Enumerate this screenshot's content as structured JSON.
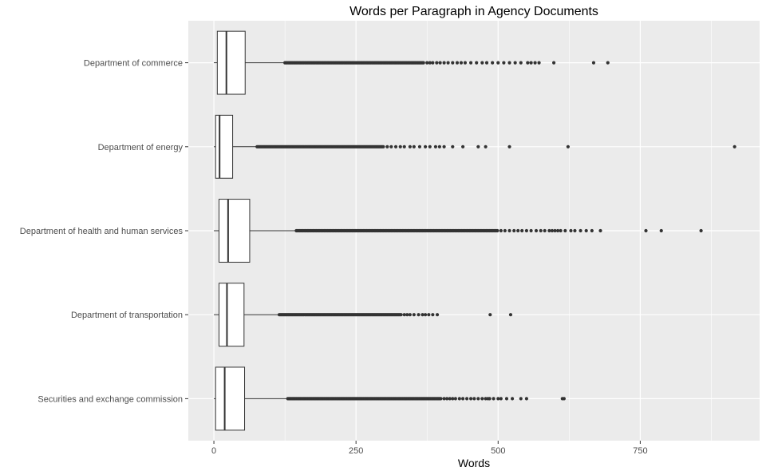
{
  "chart_data": {
    "type": "boxplot",
    "title": "Words per Paragraph in Agency Documents",
    "xlabel": "Words",
    "ylabel": "",
    "xlim": [
      -45,
      960
    ],
    "xticks": [
      0,
      250,
      500,
      750
    ],
    "grid": true,
    "legend": "none",
    "colors": {
      "panel": "#ebebeb",
      "grid": "#ffffff",
      "box_fill": "#ffffff",
      "line": "#333333",
      "point": "#333333"
    },
    "series": [
      {
        "category": "Securities and exchange commission",
        "min": 0,
        "q1": 3,
        "median": 19,
        "q3": 54,
        "whisker_high": 130,
        "dense_outlier_range": [
          130,
          400
        ],
        "outliers": [
          405,
          410,
          415,
          420,
          425,
          432,
          438,
          445,
          452,
          458,
          465,
          472,
          478,
          482,
          485,
          492,
          500,
          505,
          515,
          525,
          540,
          550,
          613,
          616
        ]
      },
      {
        "category": "Department of transportation",
        "min": 0,
        "q1": 9,
        "median": 23,
        "q3": 53,
        "whisker_high": 115,
        "dense_outlier_range": [
          115,
          330
        ],
        "outliers": [
          335,
          340,
          345,
          352,
          360,
          367,
          372,
          378,
          385,
          393,
          486,
          522
        ]
      },
      {
        "category": "Department of health and human services",
        "min": 0,
        "q1": 9,
        "median": 25,
        "q3": 63,
        "whisker_high": 145,
        "dense_outlier_range": [
          145,
          500
        ],
        "outliers": [
          505,
          512,
          520,
          528,
          535,
          542,
          550,
          558,
          567,
          575,
          582,
          590,
          595,
          600,
          605,
          610,
          618,
          628,
          635,
          645,
          655,
          665,
          680,
          760,
          787,
          857
        ]
      },
      {
        "category": "Department of energy",
        "min": 0,
        "q1": 3,
        "median": 10,
        "q3": 33,
        "whisker_high": 76,
        "dense_outlier_range": [
          76,
          300
        ],
        "outliers": [
          305,
          312,
          320,
          328,
          335,
          345,
          352,
          362,
          372,
          380,
          390,
          397,
          405,
          420,
          438,
          465,
          478,
          520,
          623,
          916
        ]
      },
      {
        "category": "Department of commerce",
        "min": 0,
        "q1": 6,
        "median": 22,
        "q3": 55,
        "whisker_high": 125,
        "dense_outlier_range": [
          125,
          370
        ],
        "outliers": [
          375,
          380,
          385,
          392,
          398,
          405,
          412,
          420,
          428,
          435,
          442,
          452,
          462,
          472,
          480,
          490,
          500,
          510,
          520,
          530,
          540,
          552,
          558,
          565,
          572,
          598,
          668,
          693
        ]
      }
    ]
  }
}
